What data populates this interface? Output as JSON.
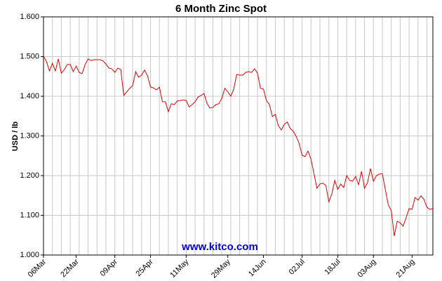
{
  "chart_data": {
    "type": "line",
    "title": "6 Month Zinc Spot",
    "y_label": "USD / lb",
    "watermark": "www.kitco.com",
    "categories": [
      "06Mar",
      null,
      null,
      null,
      null,
      null,
      null,
      null,
      null,
      null,
      null,
      "22Mar",
      null,
      null,
      null,
      null,
      null,
      null,
      null,
      null,
      null,
      null,
      null,
      null,
      "09Apr",
      null,
      null,
      null,
      null,
      null,
      null,
      null,
      null,
      null,
      null,
      null,
      "25Apr",
      null,
      null,
      null,
      null,
      null,
      null,
      null,
      null,
      null,
      null,
      null,
      "11May",
      null,
      null,
      null,
      null,
      null,
      null,
      null,
      null,
      null,
      null,
      null,
      null,
      null,
      "29May",
      null,
      null,
      null,
      null,
      null,
      null,
      null,
      null,
      null,
      null,
      null,
      "14Jun",
      null,
      null,
      null,
      null,
      null,
      null,
      null,
      null,
      null,
      null,
      null,
      null,
      "02Jul",
      null,
      null,
      null,
      null,
      null,
      null,
      null,
      null,
      null,
      null,
      null,
      "18Jul",
      null,
      null,
      null,
      null,
      null,
      null,
      null,
      null,
      null,
      null,
      null,
      "03Aug",
      null,
      null,
      null,
      null,
      null,
      null,
      null,
      null,
      null,
      null,
      null,
      null,
      "21Aug",
      null,
      null,
      null,
      null,
      null,
      null,
      null
    ],
    "series": [
      {
        "name": "Zinc",
        "color": "#e00000",
        "values": [
          1.501,
          1.487,
          1.464,
          1.483,
          1.464,
          1.494,
          1.458,
          1.467,
          1.48,
          1.48,
          1.462,
          1.476,
          1.46,
          1.457,
          1.48,
          1.494,
          1.49,
          1.492,
          1.492,
          1.492,
          1.489,
          1.481,
          1.471,
          1.469,
          1.46,
          1.471,
          1.467,
          1.402,
          1.411,
          1.42,
          1.427,
          1.462,
          1.448,
          1.453,
          1.466,
          1.451,
          1.423,
          1.421,
          1.416,
          1.423,
          1.386,
          1.386,
          1.361,
          1.381,
          1.379,
          1.388,
          1.389,
          1.391,
          1.389,
          1.373,
          1.379,
          1.386,
          1.398,
          1.402,
          1.407,
          1.382,
          1.37,
          1.372,
          1.379,
          1.381,
          1.395,
          1.42,
          1.411,
          1.4,
          1.418,
          1.455,
          1.453,
          1.453,
          1.46,
          1.462,
          1.46,
          1.469,
          1.458,
          1.42,
          1.418,
          1.389,
          1.379,
          1.349,
          1.354,
          1.326,
          1.315,
          1.329,
          1.335,
          1.319,
          1.312,
          1.299,
          1.281,
          1.251,
          1.248,
          1.262,
          1.241,
          1.205,
          1.168,
          1.179,
          1.181,
          1.175,
          1.134,
          1.154,
          1.188,
          1.165,
          1.179,
          1.17,
          1.2,
          1.188,
          1.186,
          1.198,
          1.177,
          1.211,
          1.168,
          1.182,
          1.218,
          1.186,
          1.2,
          1.204,
          1.205,
          1.165,
          1.126,
          1.112,
          1.048,
          1.085,
          1.081,
          1.073,
          1.094,
          1.117,
          1.115,
          1.145,
          1.138,
          1.149,
          1.14,
          1.12,
          1.115,
          1.117
        ]
      }
    ],
    "ylim": [
      1.0,
      1.6
    ],
    "yticks": [
      {
        "value": 1.0,
        "label": "1.000"
      },
      {
        "value": 1.1,
        "label": "1.100"
      },
      {
        "value": 1.2,
        "label": "1.200"
      },
      {
        "value": 1.3,
        "label": "1.300"
      },
      {
        "value": 1.4,
        "label": "1.400"
      },
      {
        "value": 1.5,
        "label": "1.500"
      },
      {
        "value": 1.6,
        "label": "1.600"
      }
    ],
    "grid": true
  }
}
